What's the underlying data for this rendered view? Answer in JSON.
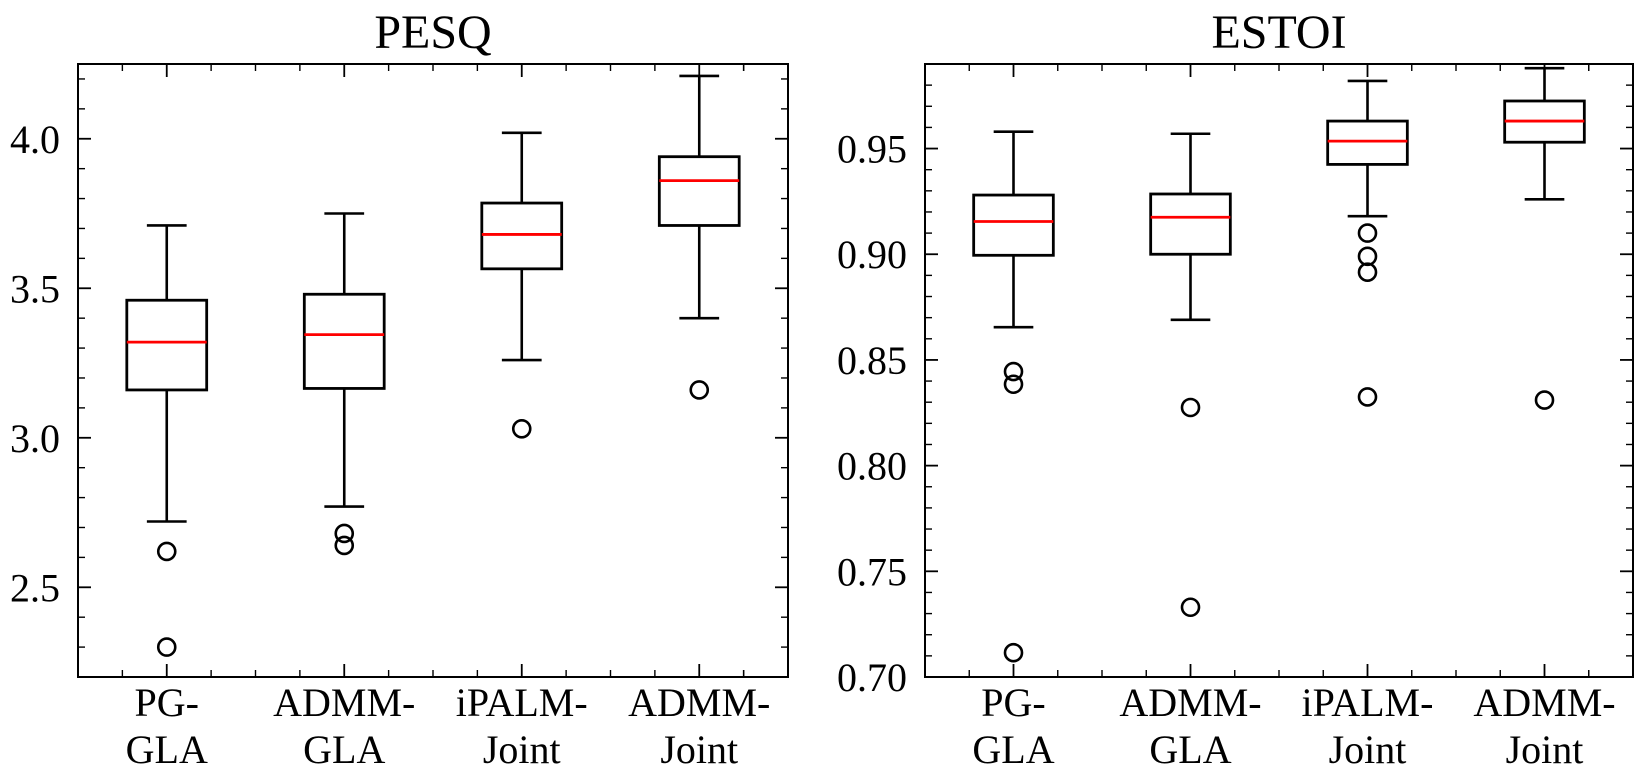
{
  "chart_data": [
    {
      "type": "boxplot",
      "title": "PESQ",
      "xlabel": "",
      "ylabel": "",
      "ylim": [
        2.2,
        4.25
      ],
      "yticks": [
        2.5,
        3.0,
        3.5,
        4.0
      ],
      "ytick_labels": [
        "2.5",
        "3.0",
        "3.5",
        "4.0"
      ],
      "categories": [
        {
          "line1": "PG-",
          "line2": "GLA"
        },
        {
          "line1": "ADMM-",
          "line2": "GLA"
        },
        {
          "line1": "iPALM-",
          "line2": "Joint"
        },
        {
          "line1": "ADMM-",
          "line2": "Joint"
        }
      ],
      "boxes": [
        {
          "whisker_low": 2.72,
          "q1": 3.16,
          "median": 3.32,
          "q3": 3.46,
          "whisker_high": 3.71,
          "outliers": [
            2.62,
            2.3
          ]
        },
        {
          "whisker_low": 2.77,
          "q1": 3.165,
          "median": 3.345,
          "q3": 3.48,
          "whisker_high": 3.75,
          "outliers": [
            2.68,
            2.64
          ]
        },
        {
          "whisker_low": 3.26,
          "q1": 3.565,
          "median": 3.68,
          "q3": 3.785,
          "whisker_high": 4.02,
          "outliers": [
            3.03
          ]
        },
        {
          "whisker_low": 3.4,
          "q1": 3.71,
          "median": 3.86,
          "q3": 3.94,
          "whisker_high": 4.21,
          "outliers": [
            3.16
          ]
        }
      ]
    },
    {
      "type": "boxplot",
      "title": "ESTOI",
      "xlabel": "",
      "ylabel": "",
      "ylim": [
        0.7,
        0.99
      ],
      "yticks": [
        0.7,
        0.75,
        0.8,
        0.85,
        0.9,
        0.95
      ],
      "ytick_labels": [
        "0.70",
        "0.75",
        "0.80",
        "0.85",
        "0.90",
        "0.95"
      ],
      "categories": [
        {
          "line1": "PG-",
          "line2": "GLA"
        },
        {
          "line1": "ADMM-",
          "line2": "GLA"
        },
        {
          "line1": "iPALM-",
          "line2": "Joint"
        },
        {
          "line1": "ADMM-",
          "line2": "Joint"
        }
      ],
      "boxes": [
        {
          "whisker_low": 0.8655,
          "q1": 0.8995,
          "median": 0.9155,
          "q3": 0.928,
          "whisker_high": 0.958,
          "outliers": [
            0.8445,
            0.8385,
            0.7115
          ]
        },
        {
          "whisker_low": 0.869,
          "q1": 0.9,
          "median": 0.9175,
          "q3": 0.9285,
          "whisker_high": 0.957,
          "outliers": [
            0.8275,
            0.733
          ]
        },
        {
          "whisker_low": 0.918,
          "q1": 0.9425,
          "median": 0.9535,
          "q3": 0.963,
          "whisker_high": 0.982,
          "outliers": [
            0.91,
            0.899,
            0.8915,
            0.8325
          ]
        },
        {
          "whisker_low": 0.926,
          "q1": 0.953,
          "median": 0.963,
          "q3": 0.9725,
          "whisker_high": 0.988,
          "outliers": [
            0.831
          ]
        }
      ]
    }
  ],
  "colors": {
    "axis": "#000000",
    "box": "#000000",
    "median": "#ff0000"
  }
}
